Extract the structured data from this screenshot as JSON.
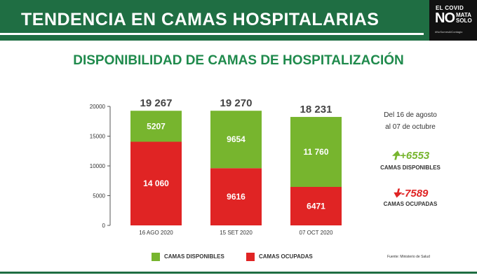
{
  "header": {
    "title": "TENDENCIA EN CAMAS HOSPITALARIAS",
    "logo": {
      "line1": "EL COVID",
      "no": "NO",
      "mata": "MATA",
      "solo": "SOLO",
      "tag": "#NoSumesAlContagio"
    }
  },
  "subtitle": "DISPONIBILIDAD DE CAMAS DE HOSPITALIZACIÓN",
  "colors": {
    "header_bg": "#1f6e43",
    "title_green": "#1f8a4c",
    "available": "#77b52e",
    "occupied": "#e02424"
  },
  "chart_data": {
    "type": "bar",
    "stacked": true,
    "categories": [
      "16 AGO 2020",
      "15 SET 2020",
      "07 OCT 2020"
    ],
    "series": [
      {
        "name": "CAMAS OCUPADAS",
        "values": [
          14060,
          9616,
          6471
        ],
        "labels": [
          "14 060",
          "9616",
          "6471"
        ]
      },
      {
        "name": "CAMAS DISPONIBLES",
        "values": [
          5207,
          9654,
          11760
        ],
        "labels": [
          "5207",
          "9654",
          "11 760"
        ]
      }
    ],
    "totals": [
      19267,
      19270,
      18231
    ],
    "total_labels": [
      "19 267",
      "19 270",
      "18 231"
    ],
    "ylim": [
      0,
      20000
    ],
    "yticks": [
      0,
      5000,
      10000,
      15000,
      20000
    ],
    "ytick_labels": [
      "0",
      "5000",
      "10000",
      "15000",
      "20000"
    ],
    "legend": "bottom"
  },
  "summary": {
    "range_line1": "Del 16 de agosto",
    "range_line2": "al 07 de octubre",
    "available_change": "+6553",
    "available_label": "CAMAS DISPONIBLES",
    "occupied_change": "-7589",
    "occupied_label": "CAMAS OCUPADAS"
  },
  "legend": {
    "available": "CAMAS DISPONIBLES",
    "occupied": "CAMAS OCUPADAS"
  },
  "source": "Fuente: Ministerio de Salud"
}
